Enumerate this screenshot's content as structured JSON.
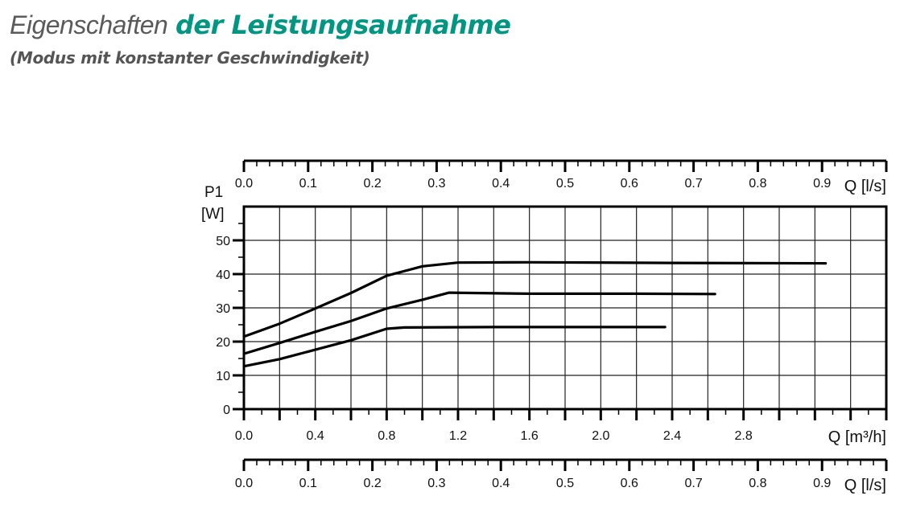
{
  "header": {
    "title_light": "Eigenschaften",
    "title_bold": "der Leistungsaufnahme",
    "subtitle": "(Modus mit konstanter Geschwindigkeit)"
  },
  "chart_data": {
    "type": "line",
    "title": "",
    "ylabel": "P1",
    "ylabel_unit": "[W]",
    "xlabel": "Q [m³/h]",
    "xlabel_secondary": "Q [l/s]",
    "xlim": [
      0,
      3.6
    ],
    "ylim": [
      0,
      60
    ],
    "grid": true,
    "x_ticks": [
      "0.0",
      "0.4",
      "0.8",
      "1.2",
      "1.6",
      "2.0",
      "2.4",
      "2.8"
    ],
    "x_tick_values": [
      0,
      0.4,
      0.8,
      1.2,
      1.6,
      2.0,
      2.4,
      2.8
    ],
    "y_ticks": [
      "0",
      "10",
      "20",
      "30",
      "40",
      "50"
    ],
    "y_tick_values": [
      0,
      10,
      20,
      30,
      40,
      50
    ],
    "secondary_x_ticks": [
      "0.0",
      "0.1",
      "0.2",
      "0.3",
      "0.4",
      "0.5",
      "0.6",
      "0.7",
      "0.8",
      "0.9"
    ],
    "secondary_x_tick_values": [
      0,
      0.1,
      0.2,
      0.3,
      0.4,
      0.5,
      0.6,
      0.7,
      0.8,
      0.9
    ],
    "line_color": "#000000",
    "series": [
      {
        "x": [
          0,
          0.2,
          0.4,
          0.6,
          0.8,
          1.0,
          1.2,
          1.6,
          2.4,
          3.26
        ],
        "y": [
          21.5,
          25.3,
          29.8,
          34.4,
          39.5,
          42.3,
          43.4,
          43.5,
          43.3,
          43.2
        ]
      },
      {
        "x": [
          0,
          0.2,
          0.4,
          0.6,
          0.8,
          1.0,
          1.15,
          1.6,
          2.2,
          2.64
        ],
        "y": [
          16.4,
          19.6,
          22.9,
          26.1,
          29.8,
          32.4,
          34.5,
          34.2,
          34.2,
          34.1
        ]
      },
      {
        "x": [
          0,
          0.2,
          0.4,
          0.6,
          0.8,
          0.9,
          1.4,
          2.0,
          2.36
        ],
        "y": [
          12.7,
          14.8,
          17.6,
          20.4,
          23.8,
          24.2,
          24.3,
          24.3,
          24.3
        ]
      }
    ]
  }
}
